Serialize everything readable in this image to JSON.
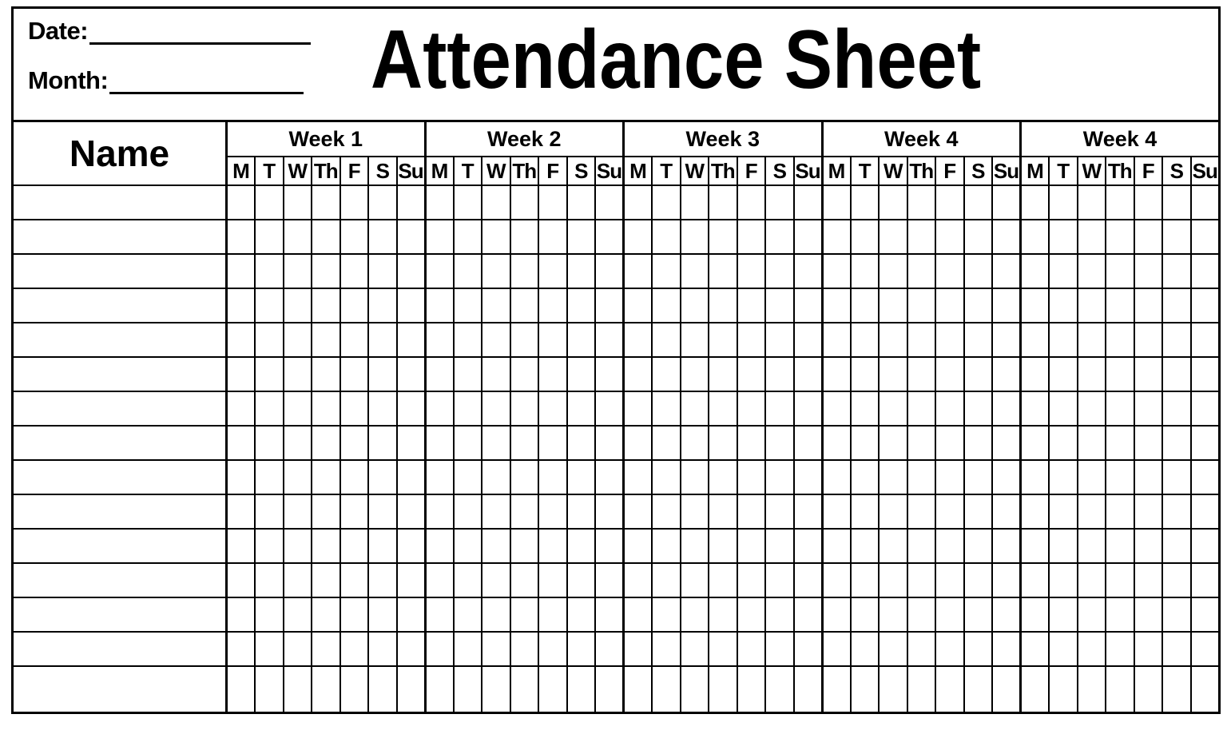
{
  "header": {
    "date_label": "Date:",
    "month_label": "Month:",
    "title": "Attendance Sheet"
  },
  "table": {
    "name_header": "Name",
    "weeks": [
      {
        "label": "Week 1",
        "days": [
          "M",
          "T",
          "W",
          "Th",
          "F",
          "S",
          "Su"
        ]
      },
      {
        "label": "Week 2",
        "days": [
          "M",
          "T",
          "W",
          "Th",
          "F",
          "S",
          "Su"
        ]
      },
      {
        "label": "Week 3",
        "days": [
          "M",
          "T",
          "W",
          "Th",
          "F",
          "S",
          "Su"
        ]
      },
      {
        "label": "Week 4",
        "days": [
          "M",
          "T",
          "W",
          "Th",
          "F",
          "S",
          "Su"
        ]
      },
      {
        "label": "Week 4",
        "days": [
          "M",
          "T",
          "W",
          "Th",
          "F",
          "S",
          "Su"
        ]
      }
    ],
    "body_row_count": 15
  },
  "colors": {
    "line": "#000000",
    "background": "#ffffff",
    "text": "#000000"
  }
}
